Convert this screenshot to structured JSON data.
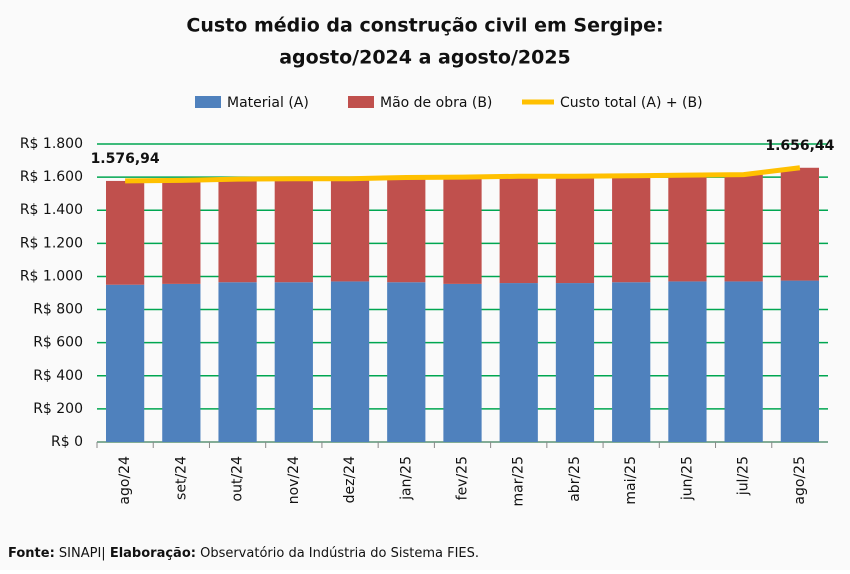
{
  "chart_data": {
    "type": "bar",
    "stacked": true,
    "title": [
      "Custo médio da construção civil em Sergipe:",
      "agosto/2024 a agosto/2025"
    ],
    "categories": [
      "ago/24",
      "set/24",
      "out/24",
      "nov/24",
      "dez/24",
      "jan/25",
      "fev/25",
      "mar/25",
      "abr/25",
      "mai/25",
      "jun/25",
      "jul/25",
      "ago/25"
    ],
    "series": [
      {
        "name": "Material (A)",
        "color": "#4f81bd",
        "type": "bar",
        "values": [
          950,
          955,
          965,
          965,
          970,
          965,
          955,
          960,
          960,
          965,
          970,
          970,
          975
        ]
      },
      {
        "name": "Mão de obra (B)",
        "color": "#c0504d",
        "type": "bar",
        "values": [
          626.94,
          625,
          623,
          625,
          620,
          633,
          645,
          645,
          645,
          643,
          642,
          645,
          681.44
        ]
      },
      {
        "name": "Custo total (A) + (B)",
        "color": "#ffc000",
        "type": "line",
        "values": [
          1576.94,
          1580,
          1588,
          1590,
          1590,
          1598,
          1600,
          1605,
          1605,
          1608,
          1612,
          1615,
          1656.44
        ],
        "value_labels": [
          "1.576,94",
          null,
          null,
          null,
          null,
          null,
          null,
          null,
          null,
          null,
          null,
          null,
          "1.656,44"
        ]
      }
    ],
    "ylim": [
      0,
      1800
    ],
    "yticks": [
      {
        "value": 0,
        "label": "R$ 0"
      },
      {
        "value": 200,
        "label": "R$ 200"
      },
      {
        "value": 400,
        "label": "R$ 400"
      },
      {
        "value": 600,
        "label": "R$ 600"
      },
      {
        "value": 800,
        "label": "R$ 800"
      },
      {
        "value": 1000,
        "label": "R$ 1.000"
      },
      {
        "value": 1200,
        "label": "R$ 1.200"
      },
      {
        "value": 1400,
        "label": "R$ 1.400"
      },
      {
        "value": 1600,
        "label": "R$ 1.600"
      },
      {
        "value": 1800,
        "label": "R$ 1.800"
      }
    ],
    "grid": true,
    "grid_color": "#00a651",
    "legend": "top",
    "source": [
      "Fonte:",
      " SINAPI| ",
      "Elaboração:",
      " Observatório da Indústria do Sistema FIES."
    ]
  }
}
